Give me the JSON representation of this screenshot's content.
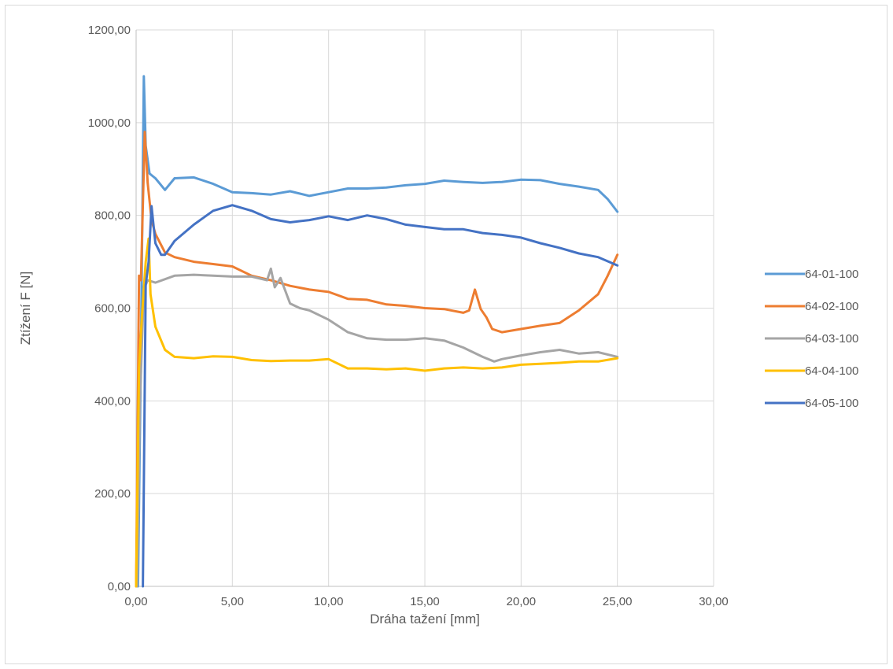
{
  "chart_data": {
    "type": "line",
    "title": "",
    "xlabel": "Dráha tažení [mm]",
    "ylabel": "Ztížení F [N]",
    "xlim": [
      0,
      30
    ],
    "ylim": [
      0,
      1200
    ],
    "x_ticks": [
      0,
      5,
      10,
      15,
      20,
      25,
      30
    ],
    "y_ticks": [
      0,
      200,
      400,
      600,
      800,
      1000,
      1200
    ],
    "x_tick_labels": [
      "0,00",
      "5,00",
      "10,00",
      "15,00",
      "20,00",
      "25,00",
      "30,00"
    ],
    "y_tick_labels": [
      "0,00",
      "200,00",
      "400,00",
      "600,00",
      "800,00",
      "1000,00",
      "1200,00"
    ],
    "grid": true,
    "legend_position": "right",
    "series": [
      {
        "name": "64-01-100",
        "color": "#5B9BD5",
        "points": [
          [
            0.1,
            0
          ],
          [
            0.25,
            500
          ],
          [
            0.4,
            1100
          ],
          [
            0.5,
            950
          ],
          [
            0.7,
            890
          ],
          [
            1.0,
            880
          ],
          [
            1.5,
            855
          ],
          [
            2.0,
            880
          ],
          [
            3.0,
            882
          ],
          [
            4.0,
            868
          ],
          [
            5.0,
            850
          ],
          [
            6.0,
            848
          ],
          [
            7.0,
            845
          ],
          [
            8.0,
            852
          ],
          [
            9.0,
            842
          ],
          [
            10.0,
            850
          ],
          [
            11.0,
            858
          ],
          [
            12.0,
            858
          ],
          [
            13.0,
            860
          ],
          [
            14.0,
            865
          ],
          [
            15.0,
            868
          ],
          [
            16.0,
            875
          ],
          [
            17.0,
            872
          ],
          [
            18.0,
            870
          ],
          [
            19.0,
            872
          ],
          [
            20.0,
            877
          ],
          [
            21.0,
            876
          ],
          [
            22.0,
            868
          ],
          [
            23.0,
            862
          ],
          [
            24.0,
            855
          ],
          [
            24.5,
            835
          ],
          [
            25.0,
            808
          ]
        ]
      },
      {
        "name": "64-02-100",
        "color": "#ED7D31",
        "points": [
          [
            0.0,
            0
          ],
          [
            0.15,
            670
          ],
          [
            0.25,
            660
          ],
          [
            0.45,
            980
          ],
          [
            0.6,
            870
          ],
          [
            0.8,
            790
          ],
          [
            1.0,
            760
          ],
          [
            1.5,
            720
          ],
          [
            2.0,
            710
          ],
          [
            3.0,
            700
          ],
          [
            4.0,
            695
          ],
          [
            5.0,
            690
          ],
          [
            6.0,
            670
          ],
          [
            7.0,
            660
          ],
          [
            8.0,
            648
          ],
          [
            9.0,
            640
          ],
          [
            10.0,
            635
          ],
          [
            11.0,
            620
          ],
          [
            12.0,
            618
          ],
          [
            13.0,
            608
          ],
          [
            14.0,
            605
          ],
          [
            15.0,
            600
          ],
          [
            16.0,
            598
          ],
          [
            17.0,
            590
          ],
          [
            17.3,
            595
          ],
          [
            17.6,
            640
          ],
          [
            17.9,
            598
          ],
          [
            18.2,
            580
          ],
          [
            18.5,
            555
          ],
          [
            19.0,
            548
          ],
          [
            20.0,
            555
          ],
          [
            21.0,
            562
          ],
          [
            22.0,
            568
          ],
          [
            23.0,
            595
          ],
          [
            24.0,
            630
          ],
          [
            24.5,
            670
          ],
          [
            25.0,
            715
          ]
        ]
      },
      {
        "name": "64-03-100",
        "color": "#A5A5A5",
        "points": [
          [
            0.05,
            0
          ],
          [
            0.2,
            400
          ],
          [
            0.4,
            640
          ],
          [
            0.6,
            660
          ],
          [
            1.0,
            655
          ],
          [
            2.0,
            670
          ],
          [
            3.0,
            672
          ],
          [
            4.0,
            670
          ],
          [
            5.0,
            668
          ],
          [
            6.0,
            668
          ],
          [
            6.8,
            660
          ],
          [
            7.0,
            685
          ],
          [
            7.2,
            645
          ],
          [
            7.5,
            665
          ],
          [
            8.0,
            610
          ],
          [
            8.5,
            600
          ],
          [
            9.0,
            595
          ],
          [
            10.0,
            575
          ],
          [
            11.0,
            548
          ],
          [
            12.0,
            535
          ],
          [
            13.0,
            532
          ],
          [
            14.0,
            532
          ],
          [
            15.0,
            535
          ],
          [
            16.0,
            530
          ],
          [
            17.0,
            515
          ],
          [
            18.0,
            495
          ],
          [
            18.6,
            485
          ],
          [
            19.0,
            490
          ],
          [
            20.0,
            498
          ],
          [
            21.0,
            505
          ],
          [
            22.0,
            510
          ],
          [
            23.0,
            502
          ],
          [
            24.0,
            505
          ],
          [
            25.0,
            495
          ]
        ]
      },
      {
        "name": "64-04-100",
        "color": "#FFC000",
        "points": [
          [
            0.0,
            0
          ],
          [
            0.15,
            470
          ],
          [
            0.3,
            580
          ],
          [
            0.5,
            700
          ],
          [
            0.65,
            750
          ],
          [
            0.75,
            630
          ],
          [
            1.0,
            560
          ],
          [
            1.5,
            510
          ],
          [
            2.0,
            495
          ],
          [
            3.0,
            492
          ],
          [
            4.0,
            496
          ],
          [
            5.0,
            495
          ],
          [
            6.0,
            488
          ],
          [
            7.0,
            486
          ],
          [
            8.0,
            487
          ],
          [
            9.0,
            487
          ],
          [
            10.0,
            490
          ],
          [
            11.0,
            470
          ],
          [
            12.0,
            470
          ],
          [
            13.0,
            468
          ],
          [
            14.0,
            470
          ],
          [
            15.0,
            465
          ],
          [
            16.0,
            470
          ],
          [
            17.0,
            472
          ],
          [
            18.0,
            470
          ],
          [
            19.0,
            472
          ],
          [
            20.0,
            478
          ],
          [
            21.0,
            480
          ],
          [
            22.0,
            482
          ],
          [
            23.0,
            485
          ],
          [
            24.0,
            485
          ],
          [
            25.0,
            492
          ]
        ]
      },
      {
        "name": "64-05-100",
        "color": "#4472C4",
        "points": [
          [
            0.35,
            0
          ],
          [
            0.5,
            650
          ],
          [
            0.65,
            700
          ],
          [
            0.8,
            820
          ],
          [
            1.0,
            740
          ],
          [
            1.3,
            715
          ],
          [
            1.5,
            715
          ],
          [
            2.0,
            745
          ],
          [
            3.0,
            780
          ],
          [
            4.0,
            810
          ],
          [
            5.0,
            822
          ],
          [
            6.0,
            810
          ],
          [
            7.0,
            792
          ],
          [
            8.0,
            785
          ],
          [
            9.0,
            790
          ],
          [
            10.0,
            798
          ],
          [
            11.0,
            790
          ],
          [
            12.0,
            800
          ],
          [
            13.0,
            792
          ],
          [
            14.0,
            780
          ],
          [
            15.0,
            775
          ],
          [
            16.0,
            770
          ],
          [
            17.0,
            770
          ],
          [
            18.0,
            762
          ],
          [
            19.0,
            758
          ],
          [
            20.0,
            752
          ],
          [
            21.0,
            740
          ],
          [
            22.0,
            730
          ],
          [
            23.0,
            718
          ],
          [
            24.0,
            710
          ],
          [
            25.0,
            692
          ]
        ]
      }
    ]
  }
}
